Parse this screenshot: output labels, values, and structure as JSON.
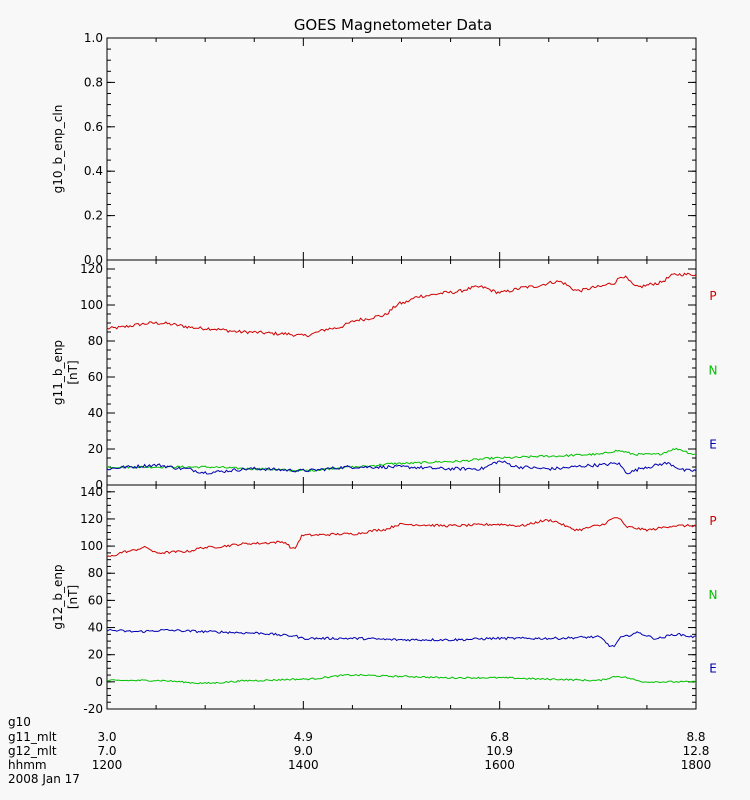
{
  "chart_data": {
    "type": "line",
    "title": "GOES Magnetometer Data",
    "x_range_hhmm": [
      "1200",
      "1800"
    ],
    "x_ticks_hhmm": [
      "1200",
      "1400",
      "1600",
      "1800"
    ],
    "footer": {
      "rows": [
        {
          "label": "g10",
          "values": [
            "",
            "",
            "",
            ""
          ]
        },
        {
          "label": "g11_mlt",
          "values": [
            "3.0",
            "4.9",
            "6.8",
            "8.8"
          ]
        },
        {
          "label": "g12_mlt",
          "values": [
            "7.0",
            "9.0",
            "10.9",
            "12.8"
          ]
        },
        {
          "label": "hhmm",
          "values": [
            "1200",
            "1400",
            "1600",
            "1800"
          ]
        }
      ],
      "date": "2008 Jan 17"
    },
    "panels": [
      {
        "ylabel": "g10_b_enp_cln",
        "unit": "",
        "ylim": [
          0.0,
          1.0
        ],
        "yticks": [
          "0.0",
          "0.2",
          "0.4",
          "0.6",
          "0.8",
          "1.0"
        ],
        "series": []
      },
      {
        "ylabel": "g11_b_enp",
        "unit": "[nT]",
        "ylim": [
          0,
          125
        ],
        "yticks": [
          "0",
          "20",
          "40",
          "60",
          "80",
          "100",
          "120"
        ],
        "series": [
          {
            "name": "P",
            "color": "#d00000",
            "x_hours": [
              12.0,
              12.5,
              13.0,
              13.4,
              13.8,
              14.0,
              14.3,
              14.6,
              14.8,
              15.0,
              15.2,
              15.5,
              15.8,
              16.0,
              16.3,
              16.6,
              16.8,
              17.0,
              17.15,
              17.25,
              17.4,
              17.6,
              17.8,
              18.0
            ],
            "values": [
              87,
              90,
              87,
              85,
              84,
              83,
              87,
              92,
              94,
              101,
              105,
              107,
              110,
              107,
              110,
              113,
              108,
              110,
              112,
              116,
              110,
              112,
              117,
              117
            ]
          },
          {
            "name": "N",
            "color": "#00c000",
            "x_hours": [
              12.0,
              12.5,
              13.0,
              13.5,
              14.0,
              14.5,
              15.0,
              15.5,
              16.0,
              16.5,
              17.0,
              17.2,
              17.4,
              17.6,
              17.8,
              18.0
            ],
            "values": [
              10,
              10,
              10,
              9,
              8,
              10,
              12,
              13,
              15,
              16,
              17,
              19,
              17,
              17,
              20,
              17
            ]
          },
          {
            "name": "E",
            "color": "#0000b0",
            "x_hours": [
              12.0,
              12.2,
              12.5,
              12.8,
              13.0,
              13.5,
              14.0,
              14.5,
              15.0,
              15.5,
              15.8,
              16.0,
              16.2,
              16.5,
              17.0,
              17.2,
              17.3,
              17.5,
              17.7,
              17.9,
              18.0
            ],
            "values": [
              9,
              10,
              11,
              9,
              7,
              9,
              8,
              10,
              10,
              9,
              9,
              13,
              10,
              9,
              11,
              12,
              7,
              10,
              12,
              8,
              8
            ]
          }
        ]
      },
      {
        "ylabel": "g12_b_enp",
        "unit": "[nT]",
        "ylim": [
          -20,
          145
        ],
        "yticks": [
          "-20",
          "0",
          "20",
          "40",
          "60",
          "80",
          "100",
          "120",
          "140"
        ],
        "series": [
          {
            "name": "P",
            "color": "#d00000",
            "x_hours": [
              12.0,
              12.2,
              12.4,
              12.5,
              12.8,
              13.0,
              13.5,
              13.8,
              13.9,
              14.0,
              14.5,
              14.8,
              15.0,
              15.5,
              16.0,
              16.2,
              16.5,
              16.8,
              17.0,
              17.2,
              17.3,
              17.5,
              17.8,
              18.0
            ],
            "values": [
              92,
              96,
              99,
              95,
              96,
              99,
              102,
              103,
              98,
              108,
              109,
              112,
              116,
              115,
              116,
              115,
              119,
              112,
              115,
              121,
              114,
              112,
              115,
              115
            ]
          },
          {
            "name": "N",
            "color": "#00c000",
            "x_hours": [
              12.0,
              12.5,
              13.0,
              13.5,
              14.0,
              14.5,
              15.0,
              15.5,
              16.0,
              16.5,
              17.0,
              17.2,
              17.5,
              18.0
            ],
            "values": [
              1,
              1,
              -1,
              1,
              2,
              5,
              4,
              3,
              3,
              2,
              1,
              4,
              0,
              0
            ]
          },
          {
            "name": "E",
            "color": "#0000b0",
            "x_hours": [
              12.0,
              12.3,
              12.6,
              13.0,
              13.5,
              13.9,
              14.0,
              14.5,
              15.0,
              15.5,
              16.0,
              16.5,
              17.0,
              17.15,
              17.25,
              17.4,
              17.6,
              17.8,
              18.0
            ],
            "values": [
              38,
              37,
              38,
              37,
              36,
              34,
              32,
              32,
              31,
              31,
              32,
              32,
              33,
              26,
              33,
              36,
              32,
              35,
              33
            ]
          }
        ]
      }
    ]
  }
}
